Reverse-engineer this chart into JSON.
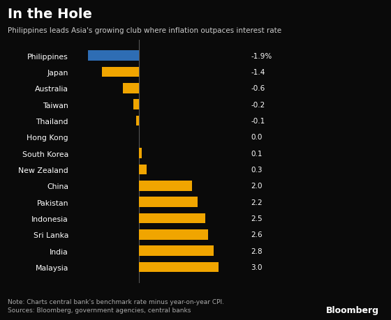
{
  "title": "In the Hole",
  "subtitle": "Philippines leads Asia's growing club where inflation outpaces interest rate",
  "note": "Note: Charts central bank's benchmark rate minus year-on-year CPI.",
  "sources": "Sources: Bloomberg, government agencies, central banks",
  "bloomberg_label": "Bloomberg",
  "categories": [
    "Philippines",
    "Japan",
    "Australia",
    "Taiwan",
    "Thailand",
    "Hong Kong",
    "South Korea",
    "New Zealand",
    "China",
    "Pakistan",
    "Indonesia",
    "Sri Lanka",
    "India",
    "Malaysia"
  ],
  "values": [
    -1.9,
    -1.4,
    -0.6,
    -0.2,
    -0.1,
    0.0,
    0.1,
    0.3,
    2.0,
    2.2,
    2.5,
    2.6,
    2.8,
    3.0
  ],
  "labels": [
    "-1.9%",
    "-1.4",
    "-0.6",
    "-0.2",
    "-0.1",
    "0.0",
    "0.1",
    "0.3",
    "2.0",
    "2.2",
    "2.5",
    "2.6",
    "2.8",
    "3.0"
  ],
  "bar_colors": [
    "#2e6db4",
    "#f0a500",
    "#f0a500",
    "#f0a500",
    "#f0a500",
    "#f0a500",
    "#f0a500",
    "#f0a500",
    "#f0a500",
    "#f0a500",
    "#f0a500",
    "#f0a500",
    "#f0a500",
    "#f0a500"
  ],
  "background_color": "#0a0a0a",
  "text_color": "#ffffff",
  "title_color": "#ffffff",
  "subtitle_color": "#cccccc",
  "note_color": "#aaaaaa",
  "zero_line_color": "#555555",
  "xlim": [
    -2.5,
    5.5
  ],
  "bar_height": 0.62
}
